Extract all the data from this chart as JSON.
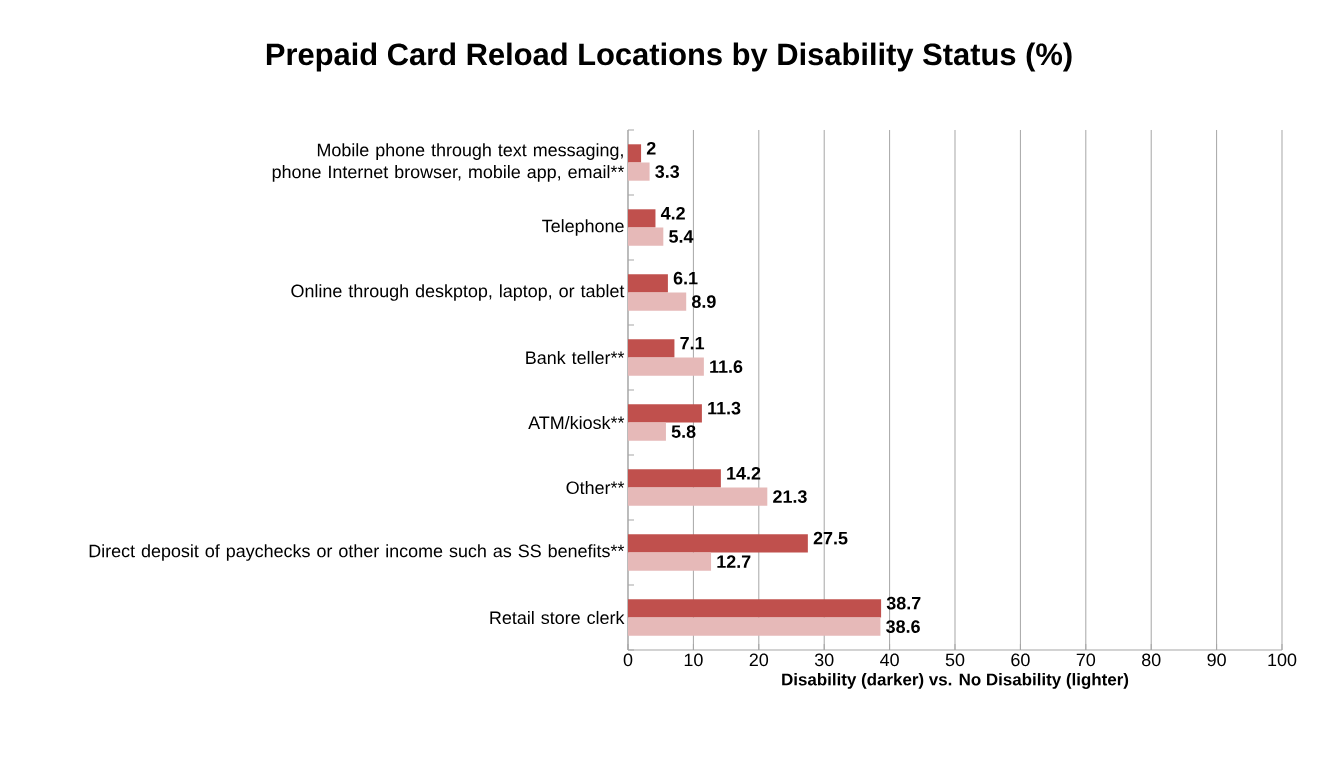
{
  "chart_data": {
    "type": "bar",
    "orientation": "horizontal",
    "title": "Prepaid Card Reload Locations by Disability Status (%)",
    "xlabel": "Disability (darker) vs. No Disability (lighter)",
    "categories": [
      "Mobile phone through text messaging, phone Internet browser, mobile app, email**",
      "Telephone",
      "Online through deskptop, laptop, or tablet",
      "Bank teller**",
      "ATM/kiosk**",
      "Other**",
      "Direct deposit of paychecks or other income such as SS benefits**",
      "Retail store clerk"
    ],
    "series": [
      {
        "color": "#c0504d",
        "values": [
          2,
          4.2,
          6.1,
          7.1,
          11.3,
          14.2,
          27.5,
          38.7
        ]
      },
      {
        "color": "#e6b9b8",
        "values": [
          3.3,
          5.4,
          8.9,
          11.6,
          5.8,
          21.3,
          12.7,
          38.6
        ]
      }
    ],
    "xlim": [
      0,
      100
    ],
    "xticks": [
      0,
      10,
      20,
      30,
      40,
      50,
      60,
      70,
      80,
      90,
      100
    ],
    "grid": "x",
    "data_labels": true
  }
}
